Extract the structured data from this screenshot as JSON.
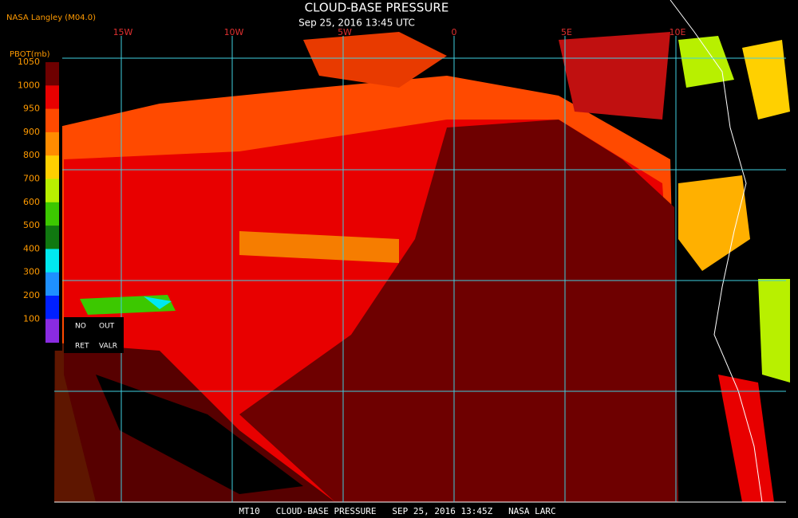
{
  "header": {
    "source": "NASA Langley (M04.0)",
    "title": "CLOUD-BASE PRESSURE",
    "subtitle": "Sep 25, 2016 13:45 UTC"
  },
  "longitudes": [
    "15W",
    "10W",
    "5W",
    "0",
    "5E",
    "10E"
  ],
  "colorbar": {
    "title": "PBOT(mb)",
    "labels": [
      1050,
      1000,
      950,
      900,
      800,
      700,
      600,
      500,
      400,
      300,
      200,
      100
    ],
    "colors": [
      "#6e0000",
      "#e80000",
      "#ff4a00",
      "#ff8c00",
      "#ffd000",
      "#b8f000",
      "#3cc800",
      "#107810",
      "#00e8f0",
      "#1e90ff",
      "#0020ff",
      "#8a2be2"
    ],
    "no_ret": [
      "NO",
      "RET"
    ],
    "out_valr": [
      "OUT",
      "VALR"
    ]
  },
  "footer": "MT10   CLOUD-BASE PRESSURE   SEP 25, 2016 13:45Z   NASA LARC"
}
